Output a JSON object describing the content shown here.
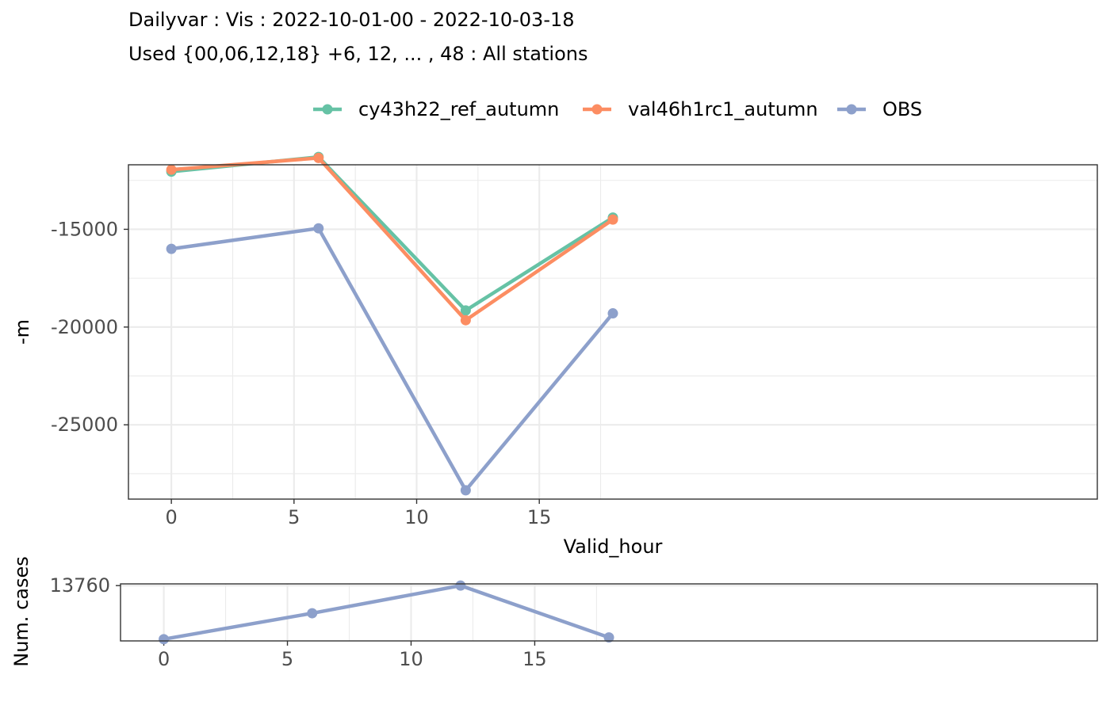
{
  "chart_data": [
    {
      "type": "line",
      "title": "Dailyvar : Vis : 2022-10-01-00 - 2022-10-03-18",
      "subtitle": "Used {00,06,12,18} +6, 12, ... , 48 : All stations",
      "xlabel": "Valid_hour",
      "ylabel": "-m",
      "xlim": [
        -1.75,
        37.75
      ],
      "ylim": [
        -28800,
        -11700
      ],
      "x_ticks": [
        0,
        5,
        10,
        15
      ],
      "y_ticks": [
        -15000,
        -20000,
        -25000
      ],
      "x": [
        0,
        6,
        12,
        18
      ],
      "legend_position": "top",
      "series": [
        {
          "name": "cy43h22_ref_autumn",
          "color": "#66C2A5",
          "values": [
            -12050,
            -11300,
            -19150,
            -14400
          ]
        },
        {
          "name": "val46h1rc1_autumn",
          "color": "#FC8D62",
          "values": [
            -11950,
            -11350,
            -19650,
            -14500
          ]
        },
        {
          "name": "OBS",
          "color": "#8DA0CB",
          "values": [
            -16000,
            -14950,
            -28350,
            -19300
          ]
        }
      ]
    },
    {
      "type": "line",
      "ylabel": "Num. cases",
      "xlim": [
        -1.75,
        37.75
      ],
      "ylim": [
        13756.8,
        13760.1
      ],
      "x_ticks": [
        0,
        5,
        10,
        15
      ],
      "y_ticks": [
        13760
      ],
      "x": [
        0,
        6,
        12,
        18
      ],
      "series": [
        {
          "color": "#8DA0CB",
          "values": [
            13756.9,
            13758.4,
            13760,
            13757
          ]
        }
      ]
    }
  ]
}
